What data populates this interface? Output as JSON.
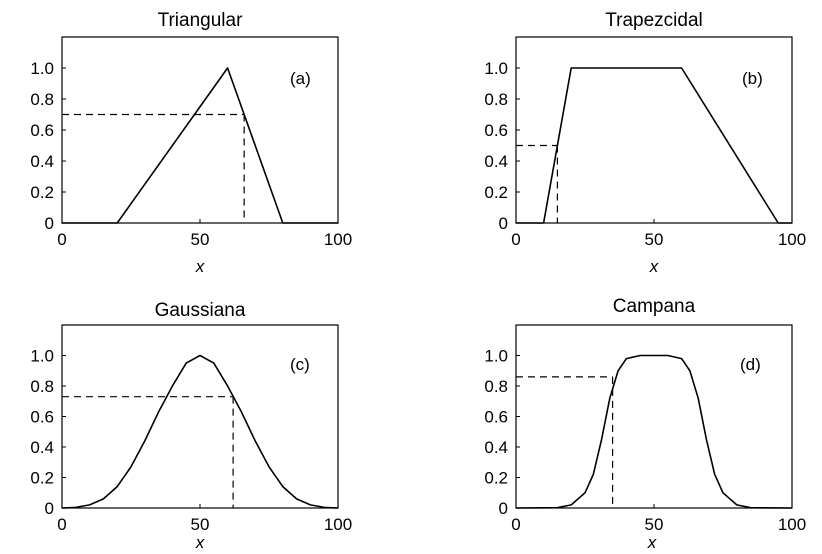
{
  "chart_data": [
    {
      "type": "line",
      "title": "Triangular",
      "label": "(a)",
      "xlabel": "x",
      "ylabel": "",
      "xlim": [
        0,
        100
      ],
      "ylim": [
        0,
        1.2
      ],
      "xticks": [
        "0",
        "50",
        "100"
      ],
      "yticks": [
        "0",
        "0.2",
        "0.4",
        "0.6",
        "0.8",
        "1.0"
      ],
      "grid": false,
      "series": [
        {
          "x": [
            0,
            20,
            60,
            80,
            100
          ],
          "y": [
            0,
            0,
            1.0,
            0,
            0
          ]
        }
      ],
      "reference": {
        "x": 66,
        "y": 0.7
      }
    },
    {
      "type": "line",
      "title": "Trapezcidal",
      "label": "(b)",
      "xlabel": "x",
      "ylabel": "",
      "xlim": [
        0,
        100
      ],
      "ylim": [
        0,
        1.2
      ],
      "xticks": [
        "0",
        "50",
        "100"
      ],
      "yticks": [
        "0",
        "0.2",
        "0.4",
        "0.6",
        "0.8",
        "1.0"
      ],
      "grid": false,
      "series": [
        {
          "x": [
            0,
            10,
            20,
            60,
            95,
            100
          ],
          "y": [
            0,
            0,
            1.0,
            1.0,
            0,
            0
          ]
        }
      ],
      "reference": {
        "x": 15,
        "y": 0.5
      }
    },
    {
      "type": "line",
      "title": "Gaussiana",
      "label": "(c)",
      "xlabel": "x",
      "ylabel": "",
      "xlim": [
        0,
        100
      ],
      "ylim": [
        0,
        1.2
      ],
      "xticks": [
        "0",
        "50",
        "100"
      ],
      "yticks": [
        "0",
        "0.2",
        "0.4",
        "0.6",
        "0.8",
        "1.0"
      ],
      "grid": false,
      "series": [
        {
          "x": [
            0,
            5,
            10,
            15,
            20,
            25,
            30,
            35,
            40,
            45,
            50,
            55,
            60,
            65,
            70,
            75,
            80,
            85,
            90,
            95,
            100
          ],
          "y": [
            0.0,
            0.004,
            0.02,
            0.06,
            0.14,
            0.27,
            0.44,
            0.63,
            0.8,
            0.95,
            1.0,
            0.95,
            0.8,
            0.63,
            0.44,
            0.27,
            0.14,
            0.06,
            0.02,
            0.004,
            0.0
          ]
        }
      ],
      "reference": {
        "x": 62,
        "y": 0.73
      }
    },
    {
      "type": "line",
      "title": "Campana",
      "label": "(d)",
      "xlabel": "x",
      "ylabel": "",
      "xlim": [
        0,
        100
      ],
      "ylim": [
        0,
        1.2
      ],
      "xticks": [
        "0",
        "50",
        "100"
      ],
      "yticks": [
        "0",
        "0.2",
        "0.4",
        "0.6",
        "0.8",
        "1.0"
      ],
      "grid": false,
      "series": [
        {
          "x": [
            0,
            15,
            20,
            25,
            28,
            31,
            34,
            37,
            40,
            45,
            50,
            55,
            60,
            63,
            66,
            69,
            72,
            75,
            80,
            85,
            100
          ],
          "y": [
            0.0,
            0.002,
            0.02,
            0.1,
            0.22,
            0.45,
            0.72,
            0.9,
            0.98,
            1.0,
            1.0,
            1.0,
            0.98,
            0.9,
            0.72,
            0.45,
            0.22,
            0.1,
            0.02,
            0.002,
            0.0
          ]
        }
      ],
      "reference": {
        "x": 35,
        "y": 0.86
      }
    }
  ]
}
